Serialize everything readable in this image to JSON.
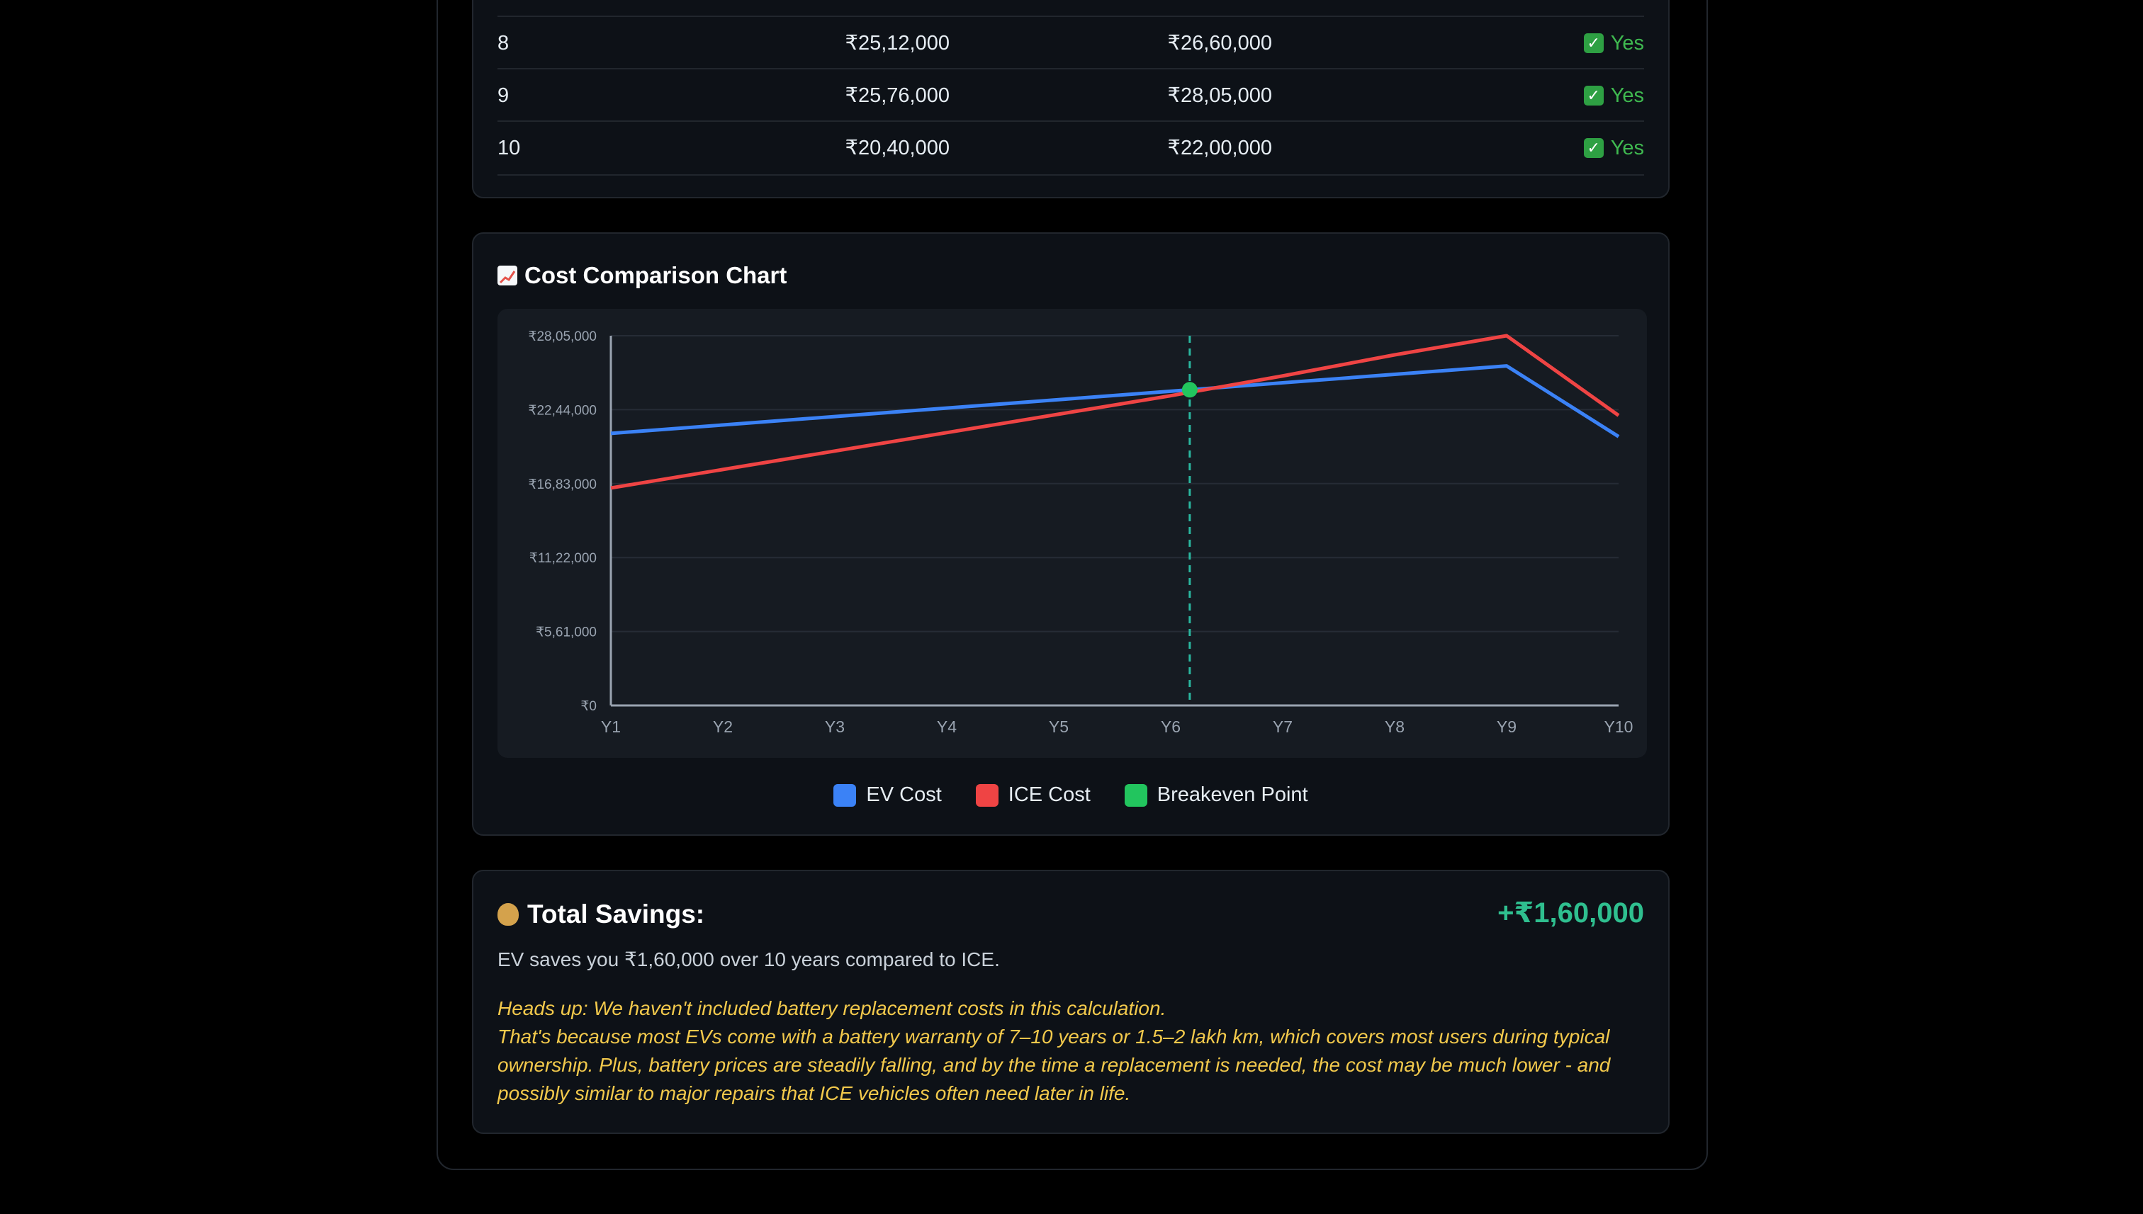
{
  "table": {
    "rows": [
      {
        "year": "8",
        "ev": "₹25,12,000",
        "ice": "₹26,60,000",
        "breakeven": "Yes"
      },
      {
        "year": "9",
        "ev": "₹25,76,000",
        "ice": "₹28,05,000",
        "breakeven": "Yes"
      },
      {
        "year": "10",
        "ev": "₹20,40,000",
        "ice": "₹22,00,000",
        "breakeven": "Yes"
      }
    ]
  },
  "chart": {
    "title": "Cost Comparison Chart",
    "legend": {
      "ev": "EV Cost",
      "ice": "ICE Cost",
      "breakeven": "Breakeven Point"
    },
    "colors": {
      "ev": "#3b82f6",
      "ice": "#ef4444",
      "breakeven": "#22c55e",
      "breakeven_line": "#2ab8a0"
    }
  },
  "chart_data": {
    "type": "line",
    "x": [
      "Y1",
      "Y2",
      "Y3",
      "Y4",
      "Y5",
      "Y6",
      "Y7",
      "Y8",
      "Y9",
      "Y10"
    ],
    "y_ticks": [
      "₹0",
      "₹5,61,000",
      "₹11,22,000",
      "₹16,83,000",
      "₹22,44,000",
      "₹28,05,000"
    ],
    "ylim": [
      0,
      2805000
    ],
    "grid": true,
    "legend_position": "bottom",
    "series": [
      {
        "name": "EV Cost",
        "values": [
          2064000,
          2128000,
          2192000,
          2256000,
          2320000,
          2384000,
          2448000,
          2512000,
          2576000,
          2040000
        ]
      },
      {
        "name": "ICE Cost",
        "values": [
          1650000,
          1790000,
          1930000,
          2070000,
          2210000,
          2350000,
          2500000,
          2660000,
          2805000,
          2200000
        ]
      }
    ],
    "breakeven_x": 6.17,
    "breakeven_y": 2395000
  },
  "savings": {
    "title": "Total Savings:",
    "amount": "+₹1,60,000",
    "description": "EV saves you ₹1,60,000 over 10 years compared to ICE.",
    "note_line1": "Heads up: We haven't included battery replacement costs in this calculation.",
    "note_line2": "That's because most EVs come with a battery warranty of 7–10 years or 1.5–2 lakh km, which covers most users during typical ownership. Plus, battery prices are steadily falling, and by the time a replacement is needed, the cost may be much lower - and possibly similar to major repairs that ICE vehicles often need later in life."
  }
}
